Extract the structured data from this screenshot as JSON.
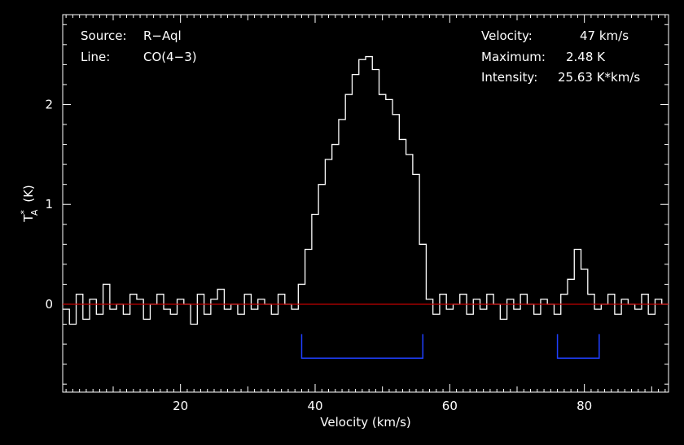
{
  "chart_data": {
    "type": "line",
    "xlabel": "Velocity (km/s)",
    "ylabel_main": "T",
    "ylabel_sup": "*",
    "ylabel_sub": "A",
    "ylabel_unit": "(K)",
    "xlim": [
      2.5,
      92.5
    ],
    "ylim": [
      -0.88,
      2.9
    ],
    "xticks": [
      20,
      40,
      60,
      80
    ],
    "yticks": [
      0,
      1,
      2
    ],
    "spectrum_color": "#ffffff",
    "baseline_color": "#c00000",
    "baseline_value": 0,
    "window_color": "#1f3fff",
    "windows": [
      {
        "start": 38.0,
        "end": 56.0
      },
      {
        "start": 76.0,
        "end": 82.2
      }
    ],
    "window_level": -0.54,
    "window_top": -0.3,
    "series": [
      {
        "x": [
          3,
          4,
          5,
          6,
          7,
          8,
          9,
          10,
          11,
          12,
          13,
          14,
          15,
          16,
          17,
          18,
          19,
          20,
          21,
          22,
          23,
          24,
          25,
          26,
          27,
          28,
          29,
          30,
          31,
          32,
          33,
          34,
          35,
          36,
          37,
          38,
          39,
          40,
          41,
          42,
          43,
          44,
          45,
          46,
          47,
          48,
          49,
          50,
          51,
          52,
          53,
          54,
          55,
          56,
          57,
          58,
          59,
          60,
          61,
          62,
          63,
          64,
          65,
          66,
          67,
          68,
          69,
          70,
          71,
          72,
          73,
          74,
          75,
          76,
          77,
          78,
          79,
          80,
          81,
          82,
          83,
          84,
          85,
          86,
          87,
          88,
          89,
          90,
          91,
          92
        ],
        "values": [
          -0.05,
          -0.2,
          0.1,
          -0.15,
          0.05,
          -0.1,
          0.2,
          -0.05,
          0.0,
          -0.1,
          0.1,
          0.05,
          -0.15,
          0.0,
          0.1,
          -0.05,
          -0.1,
          0.05,
          0.0,
          -0.2,
          0.1,
          -0.1,
          0.05,
          0.15,
          -0.05,
          0.0,
          -0.1,
          0.1,
          -0.05,
          0.05,
          0.0,
          -0.1,
          0.1,
          0.0,
          -0.05,
          0.2,
          0.55,
          0.9,
          1.2,
          1.45,
          1.6,
          1.85,
          2.1,
          2.3,
          2.45,
          2.48,
          2.35,
          2.1,
          2.05,
          1.9,
          1.65,
          1.5,
          1.3,
          0.6,
          0.05,
          -0.1,
          0.1,
          -0.05,
          0.0,
          0.1,
          -0.1,
          0.05,
          -0.05,
          0.1,
          0.0,
          -0.15,
          0.05,
          -0.05,
          0.1,
          0.0,
          -0.1,
          0.05,
          0.0,
          -0.1,
          0.1,
          0.25,
          0.55,
          0.35,
          0.1,
          -0.05,
          0.0,
          0.1,
          -0.1,
          0.05,
          0.0,
          -0.05,
          0.1,
          -0.1,
          0.05,
          0.0
        ]
      }
    ]
  },
  "info": {
    "source_key": "Source:",
    "source_val": "R−Aql",
    "line_key": "Line:",
    "line_val": "CO(4−3)",
    "velocity_key": "Velocity:",
    "velocity_val": "47 km/s",
    "maximum_key": "Maximum:",
    "maximum_val": "2.48 K",
    "intensity_key": "Intensity:",
    "intensity_val": "25.63 K*km/s"
  }
}
